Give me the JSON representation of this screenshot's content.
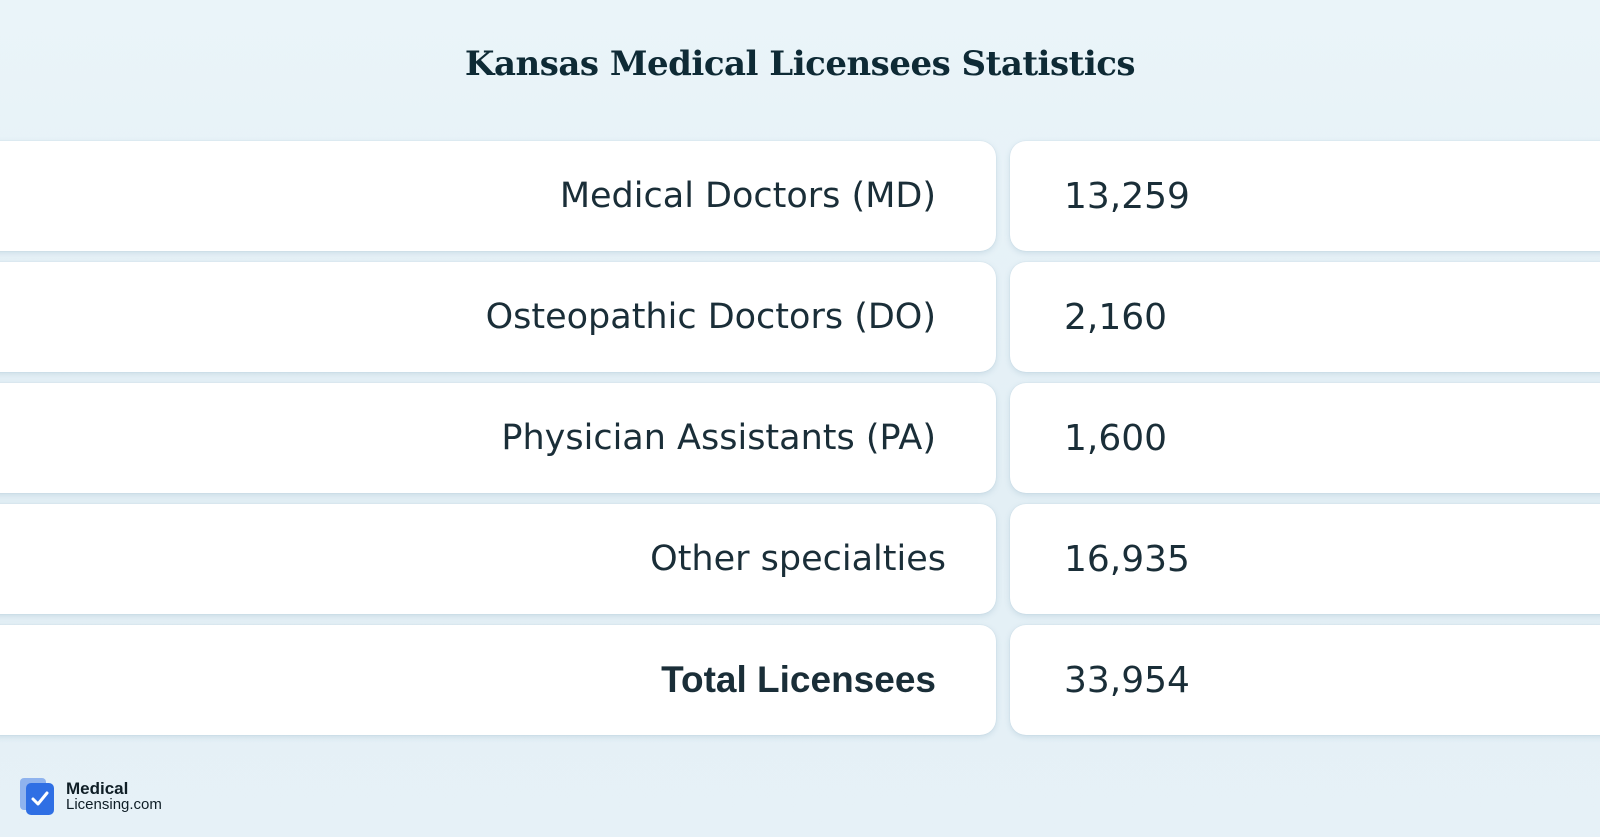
{
  "title": "Kansas Medical Licensees Statistics",
  "rows": [
    {
      "label": "Medical Doctors (MD)",
      "value": "13,259"
    },
    {
      "label": "Osteopathic Doctors (DO)",
      "value": "2,160"
    },
    {
      "label": "Physician Assistants (PA)",
      "value": "1,600"
    },
    {
      "label": "Other specialties",
      "value": "16,935"
    },
    {
      "label": "Total Licensees",
      "value": "33,954"
    }
  ],
  "logo": {
    "line1": "Medical",
    "line2": "Licensing.com",
    "icon": "checkmark-document-icon"
  },
  "colors": {
    "background": "#e7f2f8",
    "cell": "#ffffff",
    "text": "#1a2e38",
    "logo_blue": "#2f6fe4"
  },
  "chart_data": {
    "type": "table",
    "title": "Kansas Medical Licensees Statistics",
    "categories": [
      "Medical Doctors (MD)",
      "Osteopathic Doctors (DO)",
      "Physician Assistants (PA)",
      "Other specialties",
      "Total Licensees"
    ],
    "values": [
      13259,
      2160,
      1600,
      16935,
      33954
    ]
  }
}
